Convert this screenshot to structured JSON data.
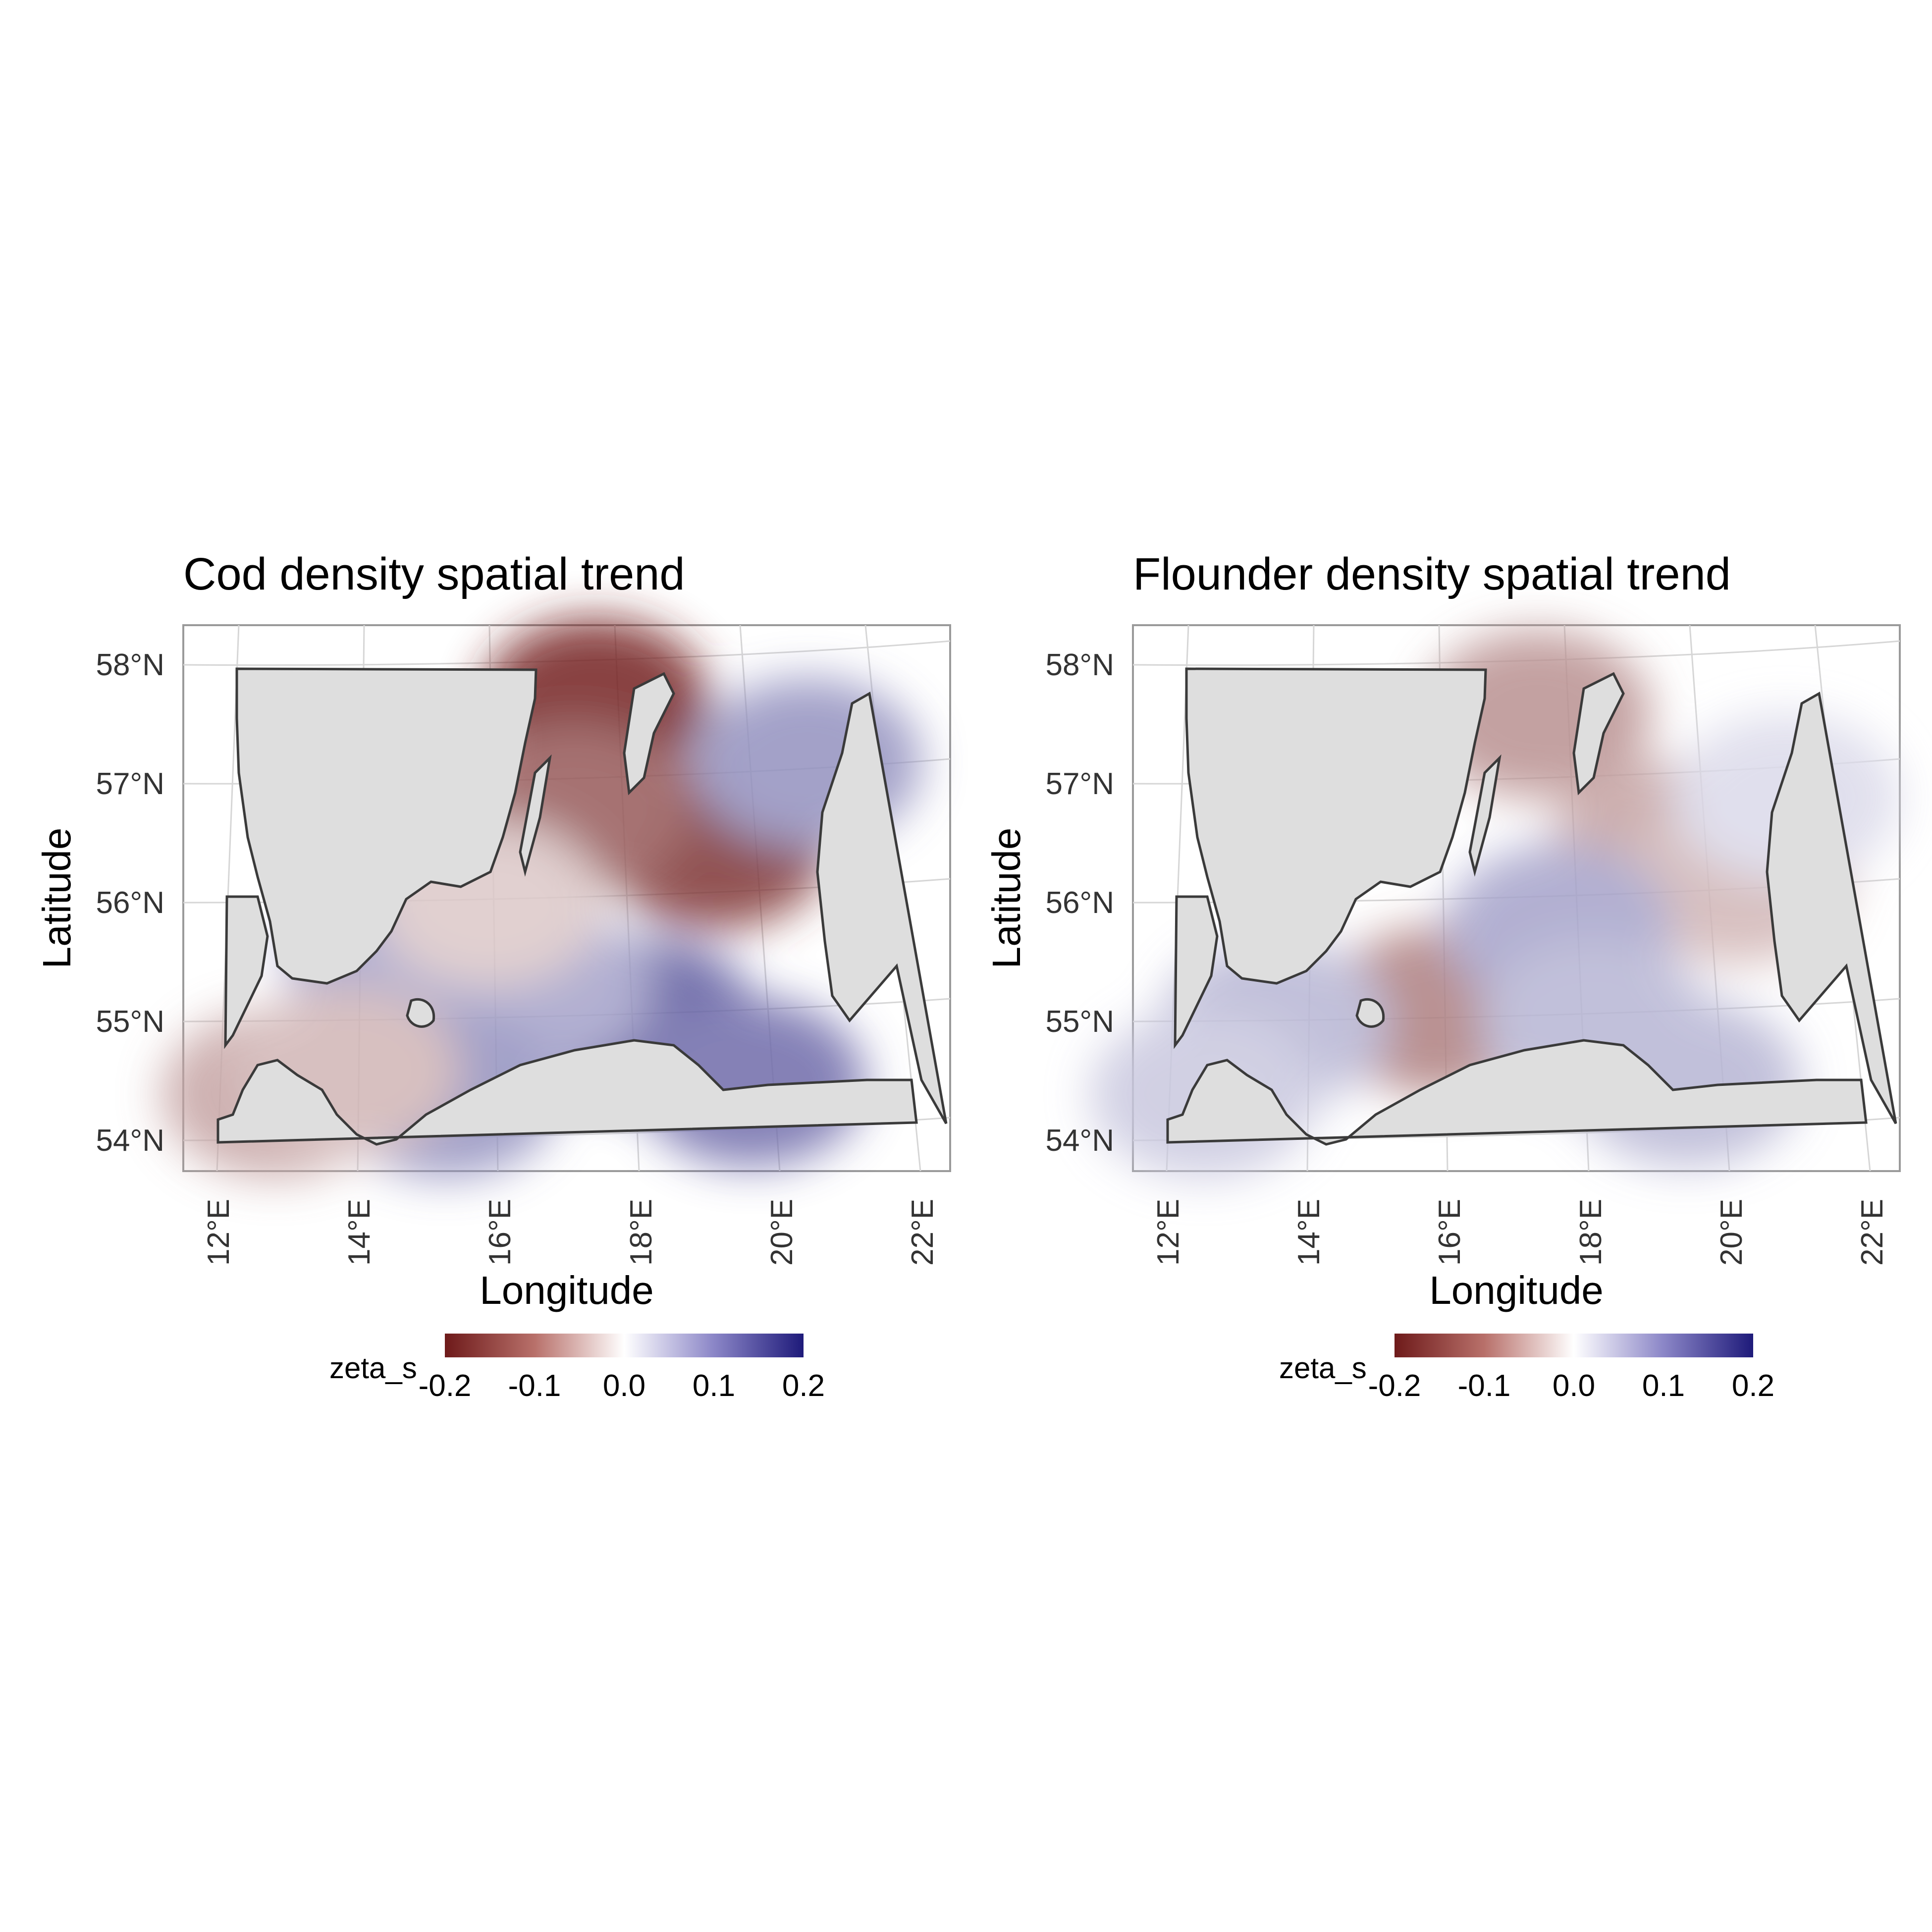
{
  "figure": {
    "colorbar": {
      "label": "zeta_s",
      "ticks": [
        "-0.2",
        "-0.1",
        "0.0",
        "0.1",
        "0.2"
      ],
      "colors": [
        "#6e1a1a",
        "#b8706a",
        "#ffffff",
        "#8b86c7",
        "#1e1a7a"
      ]
    },
    "colors": {
      "land": "#dedede",
      "coast": "#3a3a3a",
      "grid": "#d6d6d6",
      "panel_border": "#9a9a9a",
      "tick_text": "#333333",
      "neutral": "#ffffff",
      "negative": "#a14c48",
      "positive": "#6b67c0"
    },
    "panels": [
      {
        "title": "Cod density spatial trend",
        "xlabel": "Longitude",
        "ylabel": "Latitude",
        "x_ticks": [
          "12°E",
          "14°E",
          "16°E",
          "18°E",
          "20°E",
          "22°E"
        ],
        "y_ticks": [
          "58°N",
          "57°N",
          "56°N",
          "55°N",
          "54°N"
        ]
      },
      {
        "title": "Flounder density spatial trend",
        "xlabel": "Longitude",
        "ylabel": "Latitude",
        "x_ticks": [
          "12°E",
          "14°E",
          "16°E",
          "18°E",
          "20°E",
          "22°E"
        ],
        "y_ticks": [
          "58°N",
          "57°N",
          "56°N",
          "55°N",
          "54°N"
        ]
      }
    ]
  },
  "chart_data": [
    {
      "type": "heatmap",
      "title": "Cod density spatial trend",
      "xlabel": "Longitude",
      "ylabel": "Latitude",
      "xlim": [
        11.5,
        22.3
      ],
      "ylim": [
        53.75,
        58.35
      ],
      "x_ticks": [
        12,
        14,
        16,
        18,
        20,
        22
      ],
      "y_ticks": [
        54,
        55,
        56,
        57,
        58
      ],
      "color_scale": {
        "name": "zeta_s",
        "min": -0.2,
        "max": 0.2,
        "midpoint": 0
      },
      "field_samples": [
        {
          "lon": 17.3,
          "lat": 57.7,
          "zeta_s": -0.12
        },
        {
          "lon": 19.0,
          "lat": 56.5,
          "zeta_s": -0.11
        },
        {
          "lon": 17.0,
          "lat": 56.8,
          "zeta_s": -0.09
        },
        {
          "lon": 20.3,
          "lat": 57.2,
          "zeta_s": 0.06
        },
        {
          "lon": 18.0,
          "lat": 55.0,
          "zeta_s": 0.09
        },
        {
          "lon": 16.5,
          "lat": 55.3,
          "zeta_s": 0.05
        },
        {
          "lon": 14.5,
          "lat": 55.6,
          "zeta_s": 0.05
        },
        {
          "lon": 15.2,
          "lat": 54.4,
          "zeta_s": 0.06
        },
        {
          "lon": 19.5,
          "lat": 54.5,
          "zeta_s": 0.08
        },
        {
          "lon": 12.8,
          "lat": 54.4,
          "zeta_s": -0.05
        },
        {
          "lon": 13.8,
          "lat": 54.6,
          "zeta_s": -0.04
        },
        {
          "lon": 15.8,
          "lat": 56.0,
          "zeta_s": -0.03
        }
      ]
    },
    {
      "type": "heatmap",
      "title": "Flounder density spatial trend",
      "xlabel": "Longitude",
      "ylabel": "Latitude",
      "xlim": [
        11.5,
        22.3
      ],
      "ylim": [
        53.75,
        58.35
      ],
      "x_ticks": [
        12,
        14,
        16,
        18,
        20,
        22
      ],
      "y_ticks": [
        54,
        55,
        56,
        57,
        58
      ],
      "color_scale": {
        "name": "zeta_s",
        "min": -0.2,
        "max": 0.2,
        "midpoint": 0
      },
      "field_samples": [
        {
          "lon": 17.2,
          "lat": 57.6,
          "zeta_s": -0.06
        },
        {
          "lon": 19.0,
          "lat": 56.5,
          "zeta_s": -0.05
        },
        {
          "lon": 20.0,
          "lat": 56.2,
          "zeta_s": -0.04
        },
        {
          "lon": 15.8,
          "lat": 55.1,
          "zeta_s": -0.07
        },
        {
          "lon": 17.5,
          "lat": 55.8,
          "zeta_s": 0.05
        },
        {
          "lon": 18.0,
          "lat": 55.0,
          "zeta_s": 0.04
        },
        {
          "lon": 13.5,
          "lat": 55.0,
          "zeta_s": 0.04
        },
        {
          "lon": 12.5,
          "lat": 54.4,
          "zeta_s": 0.03
        },
        {
          "lon": 19.3,
          "lat": 54.5,
          "zeta_s": 0.04
        },
        {
          "lon": 20.7,
          "lat": 56.9,
          "zeta_s": 0.02
        }
      ]
    }
  ]
}
